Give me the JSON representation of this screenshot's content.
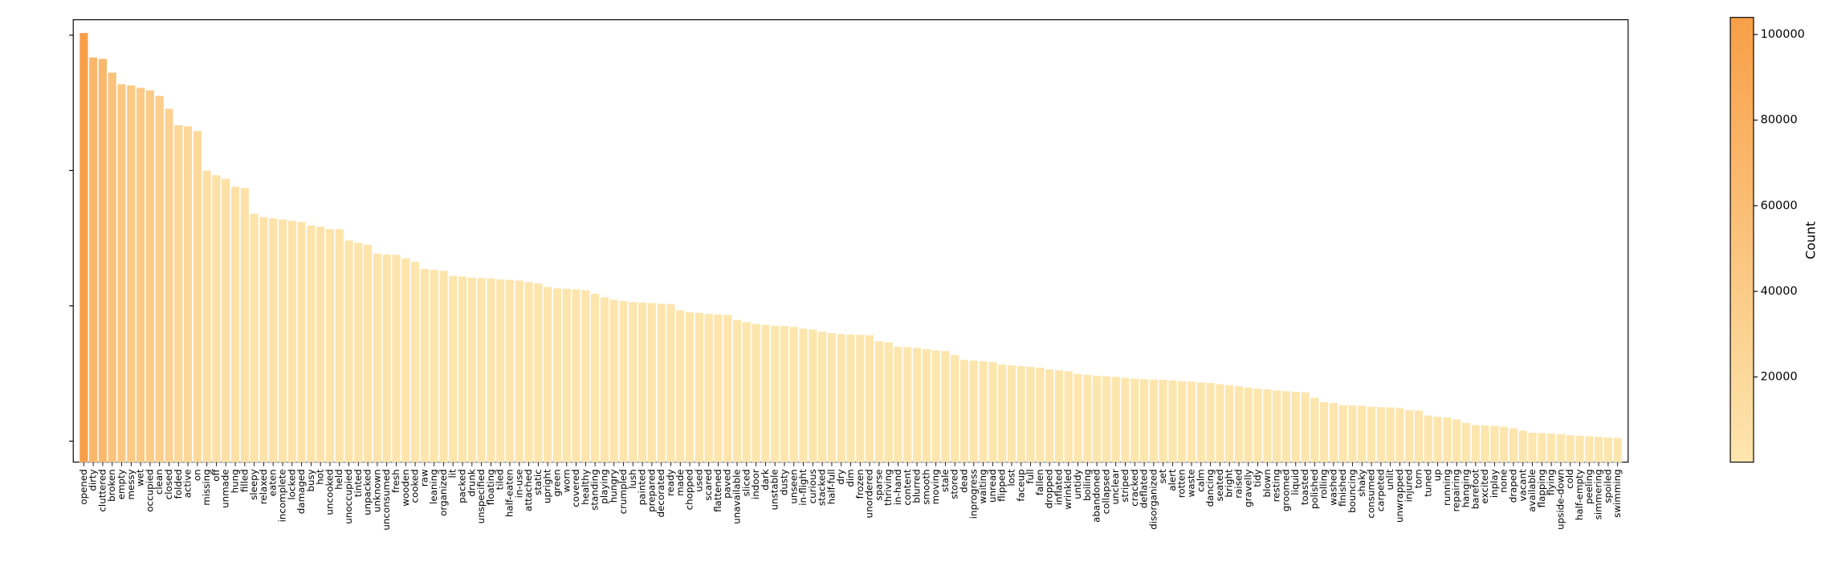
{
  "chart_data": {
    "type": "bar",
    "log_scale": true,
    "colormap": [
      "#fde6ae",
      "#f89f48"
    ],
    "colorbar_label": "Count",
    "clim": [
      100,
      104000
    ],
    "colorbar_ticks": [
      20000,
      40000,
      60000,
      80000,
      100000
    ],
    "ylim": [
      70,
      130000
    ],
    "yticks": [
      100,
      1000,
      10000,
      100000
    ],
    "categories": [
      "opened",
      "dirty",
      "cluttered",
      "broken",
      "empty",
      "messy",
      "wet",
      "occupied",
      "clean",
      "closed",
      "folded",
      "active",
      "on",
      "missing",
      "off",
      "unmade",
      "hung",
      "filled",
      "sleepy",
      "relaxed",
      "eaten",
      "incomplete",
      "locked",
      "damaged",
      "busy",
      "hot",
      "uncooked",
      "held",
      "unoccupied",
      "tinted",
      "unpacked",
      "unknown",
      "unconsumed",
      "fresh",
      "wooden",
      "cooked",
      "raw",
      "leaning",
      "organized",
      "lit",
      "packed",
      "drunk",
      "unspecified",
      "floating",
      "tiled",
      "half-eaten",
      "in-use",
      "attached",
      "static",
      "upright",
      "green",
      "worn",
      "covered",
      "healthy",
      "standing",
      "playing",
      "hungry",
      "crumpled",
      "lush",
      "painted",
      "prepared",
      "decorated",
      "ready",
      "made",
      "chopped",
      "used",
      "scared",
      "flattened",
      "paved",
      "unavailable",
      "sliced",
      "indoor",
      "dark",
      "unstable",
      "dusty",
      "unseen",
      "in-flight",
      "curious",
      "stacked",
      "half-full",
      "dry",
      "dim",
      "frozen",
      "unordered",
      "sparse",
      "thriving",
      "in-hand",
      "content",
      "blurred",
      "smooth",
      "moving",
      "stale",
      "stored",
      "dead",
      "inprogress",
      "waiting",
      "unread",
      "flipped",
      "lost",
      "faceup",
      "full",
      "fallen",
      "dropped",
      "inflated",
      "wrinkled",
      "untidy",
      "boiling",
      "abandoned",
      "collapsed",
      "unclear",
      "striped",
      "cracked",
      "deflated",
      "disorganized",
      "set",
      "alert",
      "rotten",
      "waste",
      "calm",
      "dancing",
      "seated",
      "bright",
      "raised",
      "gravelly",
      "tidy",
      "blown",
      "resting",
      "groomed",
      "liquid",
      "toasted",
      "polished",
      "rolling",
      "washed",
      "finished",
      "bouncing",
      "shaky",
      "consumed",
      "carpeted",
      "unlit",
      "unwrapped",
      "injured",
      "torn",
      "tuned",
      "up",
      "running",
      "repairing",
      "hanging",
      "barefoot",
      "excited",
      "inplay",
      "none",
      "draped",
      "vacant",
      "available",
      "flapping",
      "flying",
      "upside-down",
      "cold",
      "half-empty",
      "peeling",
      "simmering",
      "spoiled",
      "swimming"
    ],
    "values": [
      104000,
      68600,
      67000,
      53000,
      43500,
      42600,
      40900,
      39300,
      35600,
      28700,
      21700,
      21300,
      19600,
      10000,
      9250,
      8700,
      7600,
      7440,
      4800,
      4540,
      4450,
      4350,
      4260,
      4170,
      3930,
      3850,
      3700,
      3690,
      3050,
      2930,
      2830,
      2440,
      2400,
      2390,
      2250,
      2120,
      1880,
      1850,
      1820,
      1670,
      1650,
      1620,
      1610,
      1600,
      1570,
      1560,
      1540,
      1500,
      1470,
      1380,
      1350,
      1340,
      1330,
      1310,
      1230,
      1160,
      1110,
      1090,
      1070,
      1060,
      1050,
      1040,
      1030,
      930,
      900,
      890,
      875,
      865,
      860,
      790,
      760,
      735,
      725,
      715,
      710,
      700,
      680,
      670,
      645,
      630,
      620,
      615,
      612,
      610,
      550,
      540,
      500,
      495,
      490,
      480,
      470,
      465,
      435,
      400,
      395,
      390,
      385,
      370,
      365,
      360,
      355,
      350,
      340,
      335,
      330,
      315,
      310,
      305,
      302,
      300,
      295,
      290,
      288,
      286,
      285,
      282,
      278,
      276,
      272,
      270,
      265,
      260,
      255,
      250,
      245,
      242,
      238,
      235,
      232,
      230,
      210,
      195,
      192,
      185,
      184,
      183,
      180,
      179,
      178,
      176,
      170,
      169,
      155,
      152,
      150,
      145,
      137,
      132,
      131,
      130,
      128,
      125,
      120,
      116,
      115,
      114,
      113,
      111,
      110,
      109,
      108,
      107,
      106
    ]
  }
}
